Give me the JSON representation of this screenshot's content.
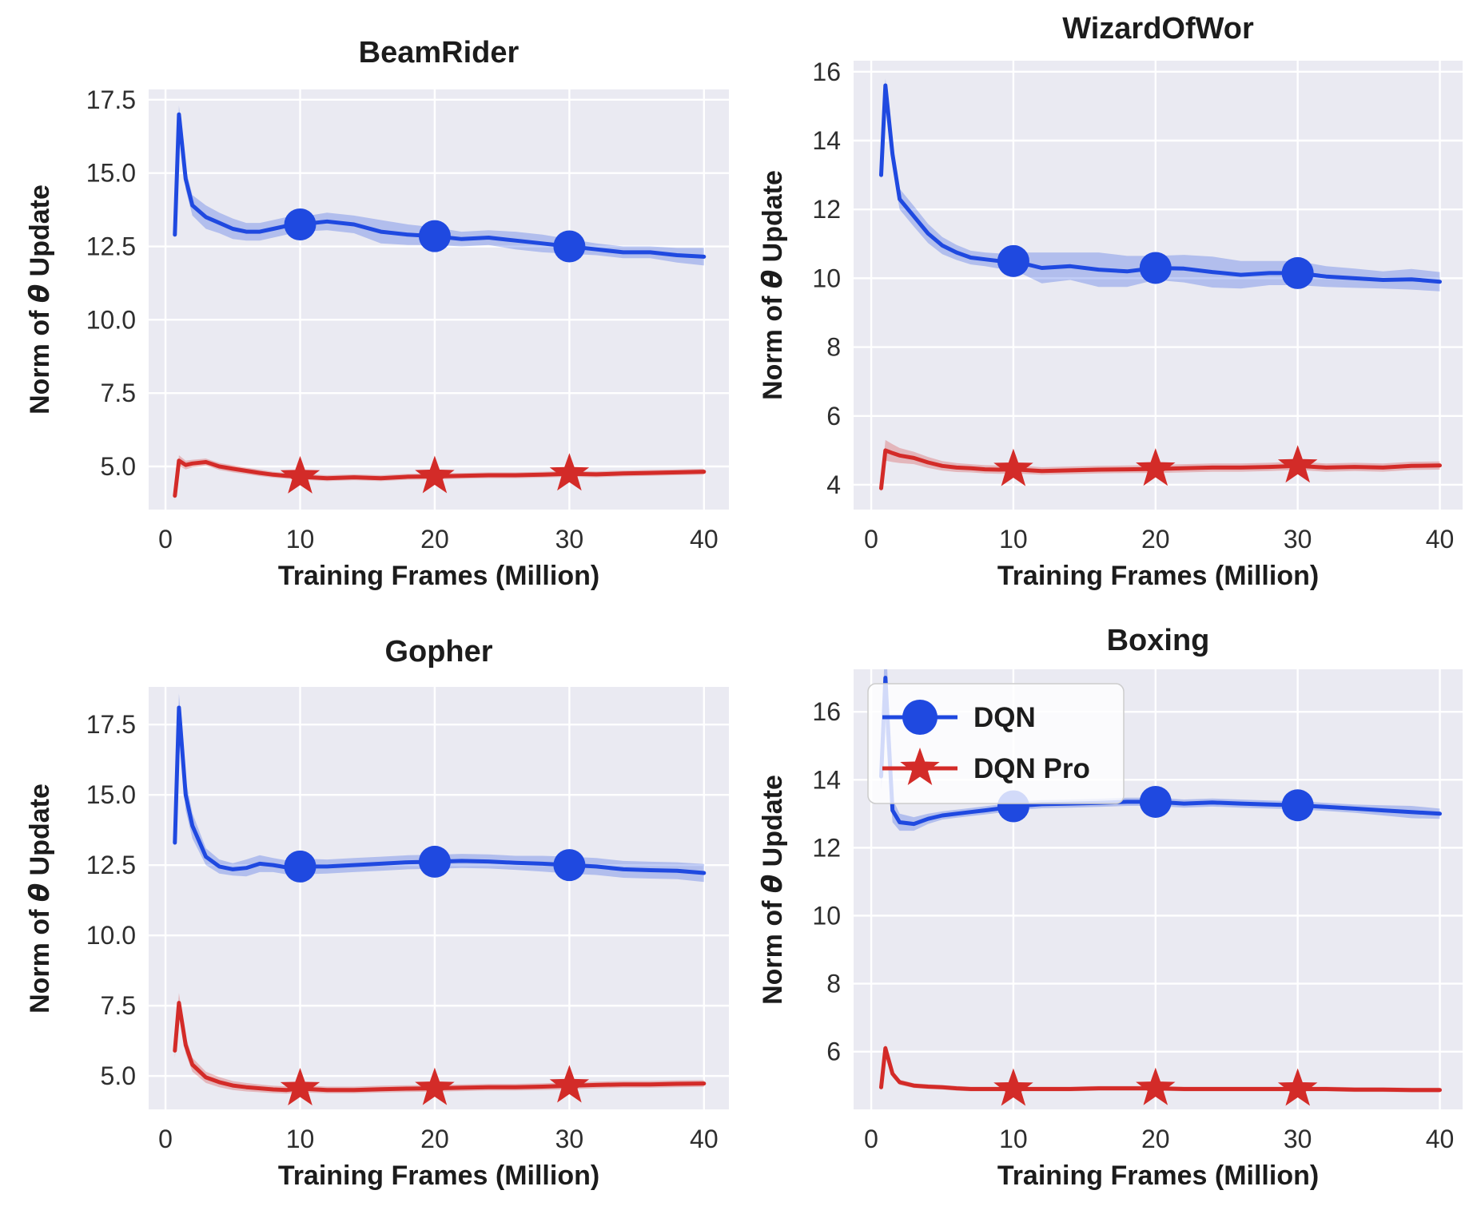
{
  "style": {
    "panel_bg": "#eaeaf2",
    "grid_color": "#ffffff",
    "tick_color": "#2e2e2e",
    "title_color": "#1c1c1c",
    "dqn_color": "#1f49e0",
    "dqn_pro_color": "#d32b28",
    "band_opacity": 0.27,
    "legend_bg": "rgba(255,255,255,0.8)",
    "legend_border": "#cccccc"
  },
  "axes": {
    "xlabel": "Training Frames (Million)",
    "ylabel_pre": "Norm of ",
    "ylabel_theta": "θ",
    "ylabel_post": " Update",
    "ylabel_full": "Norm of θ Update"
  },
  "legend": {
    "location": "upper left",
    "shown_on_chart": "Boxing",
    "entries": [
      {
        "label": "DQN",
        "marker": "circle",
        "color": "#1f49e0"
      },
      {
        "label": "DQN Pro",
        "marker": "star",
        "color": "#d32b28"
      }
    ]
  },
  "chart_data": [
    {
      "type": "line",
      "title": "BeamRider",
      "xlabel": "Training Frames (Million)",
      "ylabel": "Norm of θ Update",
      "xlim": [
        -1.25,
        41.85
      ],
      "ylim": [
        3.53,
        17.85
      ],
      "xticks": [
        0,
        10,
        20,
        30,
        40
      ],
      "xtick_labels": [
        "0",
        "10",
        "20",
        "30",
        "40"
      ],
      "yticks": [
        5.0,
        7.5,
        10.0,
        12.5,
        15.0,
        17.5
      ],
      "ytick_labels": [
        "5.0",
        "7.5",
        "10.0",
        "12.5",
        "15.0",
        "17.5"
      ],
      "legend": false,
      "x": [
        0.7,
        1,
        1.5,
        2,
        3,
        4,
        5,
        6,
        7,
        8,
        9,
        10,
        12,
        14,
        16,
        18,
        20,
        22,
        24,
        26,
        28,
        30,
        32,
        34,
        36,
        38,
        40
      ],
      "series": [
        {
          "name": "DQN",
          "marker": "circle",
          "color": "#1f49e0",
          "marker_x": [
            10,
            20,
            30
          ],
          "y": [
            12.9,
            17.0,
            14.8,
            13.9,
            13.5,
            13.3,
            13.1,
            13.0,
            13.0,
            13.1,
            13.2,
            13.25,
            13.35,
            13.25,
            13.0,
            12.9,
            12.85,
            12.75,
            12.8,
            12.7,
            12.6,
            12.5,
            12.4,
            12.3,
            12.3,
            12.2,
            12.15
          ],
          "band": [
            0.15,
            0.3,
            0.35,
            0.35,
            0.4,
            0.35,
            0.35,
            0.3,
            0.3,
            0.3,
            0.3,
            0.25,
            0.3,
            0.3,
            0.4,
            0.35,
            0.3,
            0.25,
            0.25,
            0.3,
            0.3,
            0.25,
            0.2,
            0.2,
            0.2,
            0.25,
            0.3
          ]
        },
        {
          "name": "DQN Pro",
          "marker": "star",
          "color": "#d32b28",
          "marker_x": [
            10,
            20,
            30
          ],
          "y": [
            4.0,
            5.2,
            5.05,
            5.1,
            5.15,
            5.0,
            4.92,
            4.85,
            4.78,
            4.72,
            4.68,
            4.65,
            4.6,
            4.63,
            4.6,
            4.65,
            4.66,
            4.68,
            4.7,
            4.7,
            4.72,
            4.75,
            4.73,
            4.76,
            4.78,
            4.8,
            4.82
          ],
          "band": [
            0.15,
            0.18,
            0.15,
            0.13,
            0.12,
            0.12,
            0.12,
            0.11,
            0.11,
            0.1,
            0.1,
            0.1,
            0.1,
            0.1,
            0.1,
            0.1,
            0.1,
            0.1,
            0.1,
            0.1,
            0.1,
            0.1,
            0.1,
            0.1,
            0.1,
            0.1,
            0.1
          ]
        }
      ]
    },
    {
      "type": "line",
      "title": "WizardOfWor",
      "xlabel": "Training Frames (Million)",
      "ylabel": "Norm of θ Update",
      "xlim": [
        -1.24,
        41.6
      ],
      "ylim": [
        3.28,
        16.32
      ],
      "xticks": [
        0,
        10,
        20,
        30,
        40
      ],
      "xtick_labels": [
        "0",
        "10",
        "20",
        "30",
        "40"
      ],
      "yticks": [
        4,
        6,
        8,
        10,
        12,
        14,
        16
      ],
      "ytick_labels": [
        "4",
        "6",
        "8",
        "10",
        "12",
        "14",
        "16"
      ],
      "legend": false,
      "x": [
        0.7,
        1,
        1.5,
        2,
        3,
        4,
        5,
        6,
        7,
        8,
        9,
        10,
        12,
        14,
        16,
        18,
        20,
        22,
        24,
        26,
        28,
        30,
        32,
        34,
        36,
        38,
        40
      ],
      "series": [
        {
          "name": "DQN",
          "marker": "circle",
          "color": "#1f49e0",
          "marker_x": [
            10,
            20,
            30
          ],
          "y": [
            13.0,
            15.6,
            13.6,
            12.3,
            11.8,
            11.3,
            10.95,
            10.75,
            10.6,
            10.55,
            10.5,
            10.5,
            10.3,
            10.35,
            10.25,
            10.2,
            10.3,
            10.28,
            10.18,
            10.1,
            10.15,
            10.15,
            10.05,
            10.0,
            9.95,
            9.97,
            9.9
          ],
          "band": [
            0.1,
            0.2,
            0.35,
            0.3,
            0.3,
            0.28,
            0.25,
            0.22,
            0.2,
            0.2,
            0.22,
            0.25,
            0.45,
            0.4,
            0.5,
            0.45,
            0.35,
            0.4,
            0.45,
            0.4,
            0.35,
            0.35,
            0.3,
            0.28,
            0.25,
            0.3,
            0.28
          ]
        },
        {
          "name": "DQN Pro",
          "marker": "star",
          "color": "#d32b28",
          "marker_x": [
            10,
            20,
            30
          ],
          "y": [
            3.9,
            5.0,
            4.92,
            4.85,
            4.78,
            4.65,
            4.55,
            4.5,
            4.48,
            4.45,
            4.44,
            4.45,
            4.4,
            4.42,
            4.44,
            4.45,
            4.46,
            4.48,
            4.5,
            4.5,
            4.52,
            4.55,
            4.5,
            4.52,
            4.5,
            4.55,
            4.56
          ],
          "band": [
            0.12,
            0.3,
            0.26,
            0.22,
            0.18,
            0.16,
            0.14,
            0.13,
            0.12,
            0.12,
            0.12,
            0.12,
            0.11,
            0.11,
            0.11,
            0.11,
            0.12,
            0.12,
            0.12,
            0.12,
            0.12,
            0.12,
            0.12,
            0.12,
            0.12,
            0.12,
            0.12
          ]
        }
      ]
    },
    {
      "type": "line",
      "title": "Gopher",
      "xlabel": "Training Frames (Million)",
      "ylabel": "Norm of θ Update",
      "xlim": [
        -1.25,
        41.85
      ],
      "ylim": [
        3.81,
        18.84
      ],
      "xticks": [
        0,
        10,
        20,
        30,
        40
      ],
      "xtick_labels": [
        "0",
        "10",
        "20",
        "30",
        "40"
      ],
      "yticks": [
        5.0,
        7.5,
        10.0,
        12.5,
        15.0,
        17.5
      ],
      "ytick_labels": [
        "5.0",
        "7.5",
        "10.0",
        "12.5",
        "15.0",
        "17.5"
      ],
      "legend": false,
      "x": [
        0.7,
        1,
        1.5,
        2,
        3,
        4,
        5,
        6,
        7,
        8,
        9,
        10,
        12,
        14,
        16,
        18,
        20,
        22,
        24,
        26,
        28,
        30,
        32,
        34,
        36,
        38,
        40
      ],
      "series": [
        {
          "name": "DQN",
          "marker": "circle",
          "color": "#1f49e0",
          "marker_x": [
            10,
            20,
            30
          ],
          "y": [
            13.3,
            18.1,
            15.0,
            13.9,
            12.8,
            12.45,
            12.35,
            12.4,
            12.55,
            12.5,
            12.42,
            12.45,
            12.45,
            12.5,
            12.55,
            12.6,
            12.62,
            12.65,
            12.63,
            12.58,
            12.55,
            12.5,
            12.45,
            12.35,
            12.32,
            12.3,
            12.22
          ],
          "band": [
            0.2,
            0.5,
            0.55,
            0.45,
            0.3,
            0.25,
            0.22,
            0.3,
            0.3,
            0.25,
            0.25,
            0.28,
            0.25,
            0.25,
            0.25,
            0.25,
            0.25,
            0.25,
            0.25,
            0.25,
            0.28,
            0.3,
            0.3,
            0.3,
            0.3,
            0.3,
            0.32
          ]
        },
        {
          "name": "DQN Pro",
          "marker": "star",
          "color": "#d32b28",
          "marker_x": [
            10,
            20,
            30
          ],
          "y": [
            5.9,
            7.6,
            6.1,
            5.4,
            4.95,
            4.78,
            4.66,
            4.6,
            4.56,
            4.52,
            4.5,
            4.55,
            4.5,
            4.5,
            4.53,
            4.55,
            4.56,
            4.58,
            4.6,
            4.6,
            4.62,
            4.65,
            4.68,
            4.7,
            4.7,
            4.72,
            4.73
          ],
          "band": [
            0.25,
            0.35,
            0.3,
            0.25,
            0.2,
            0.18,
            0.16,
            0.15,
            0.14,
            0.13,
            0.13,
            0.13,
            0.12,
            0.12,
            0.12,
            0.12,
            0.12,
            0.12,
            0.12,
            0.12,
            0.12,
            0.12,
            0.12,
            0.12,
            0.12,
            0.12,
            0.12
          ]
        }
      ]
    },
    {
      "type": "line",
      "title": "Boxing",
      "xlabel": "Training Frames (Million)",
      "ylabel": "Norm of θ Update",
      "xlim": [
        -1.24,
        41.6
      ],
      "ylim": [
        4.3,
        17.25
      ],
      "xticks": [
        0,
        10,
        20,
        30,
        40
      ],
      "xtick_labels": [
        "0",
        "10",
        "20",
        "30",
        "40"
      ],
      "yticks": [
        6,
        8,
        10,
        12,
        14,
        16
      ],
      "ytick_labels": [
        "6",
        "8",
        "10",
        "12",
        "14",
        "16"
      ],
      "legend": true,
      "x": [
        0.7,
        1,
        1.5,
        2,
        3,
        4,
        5,
        6,
        7,
        8,
        9,
        10,
        12,
        14,
        16,
        18,
        20,
        22,
        24,
        26,
        28,
        30,
        32,
        34,
        36,
        38,
        40
      ],
      "series": [
        {
          "name": "DQN",
          "marker": "circle",
          "color": "#1f49e0",
          "marker_x": [
            10,
            20,
            30
          ],
          "y": [
            14.1,
            17.0,
            13.1,
            12.75,
            12.7,
            12.85,
            12.95,
            13.0,
            13.05,
            13.1,
            13.15,
            13.22,
            13.28,
            13.3,
            13.32,
            13.35,
            13.35,
            13.3,
            13.33,
            13.3,
            13.27,
            13.25,
            13.2,
            13.15,
            13.1,
            13.05,
            13.0
          ],
          "band": [
            0.4,
            1.6,
            0.35,
            0.25,
            0.2,
            0.15,
            0.12,
            0.12,
            0.12,
            0.12,
            0.12,
            0.12,
            0.12,
            0.12,
            0.12,
            0.12,
            0.12,
            0.12,
            0.12,
            0.12,
            0.12,
            0.12,
            0.12,
            0.12,
            0.15,
            0.18,
            0.15
          ]
        },
        {
          "name": "DQN Pro",
          "marker": "star",
          "color": "#d32b28",
          "marker_x": [
            10,
            20,
            30
          ],
          "y": [
            4.95,
            6.1,
            5.35,
            5.1,
            5.0,
            4.97,
            4.95,
            4.92,
            4.9,
            4.9,
            4.9,
            4.9,
            4.9,
            4.9,
            4.92,
            4.92,
            4.92,
            4.9,
            4.9,
            4.9,
            4.9,
            4.9,
            4.9,
            4.88,
            4.88,
            4.87,
            4.87
          ],
          "band": [
            0.08,
            0.12,
            0.1,
            0.08,
            0.07,
            0.07,
            0.07,
            0.07,
            0.07,
            0.07,
            0.07,
            0.07,
            0.07,
            0.07,
            0.07,
            0.07,
            0.07,
            0.07,
            0.07,
            0.07,
            0.07,
            0.07,
            0.07,
            0.07,
            0.07,
            0.07,
            0.07
          ]
        }
      ]
    }
  ]
}
